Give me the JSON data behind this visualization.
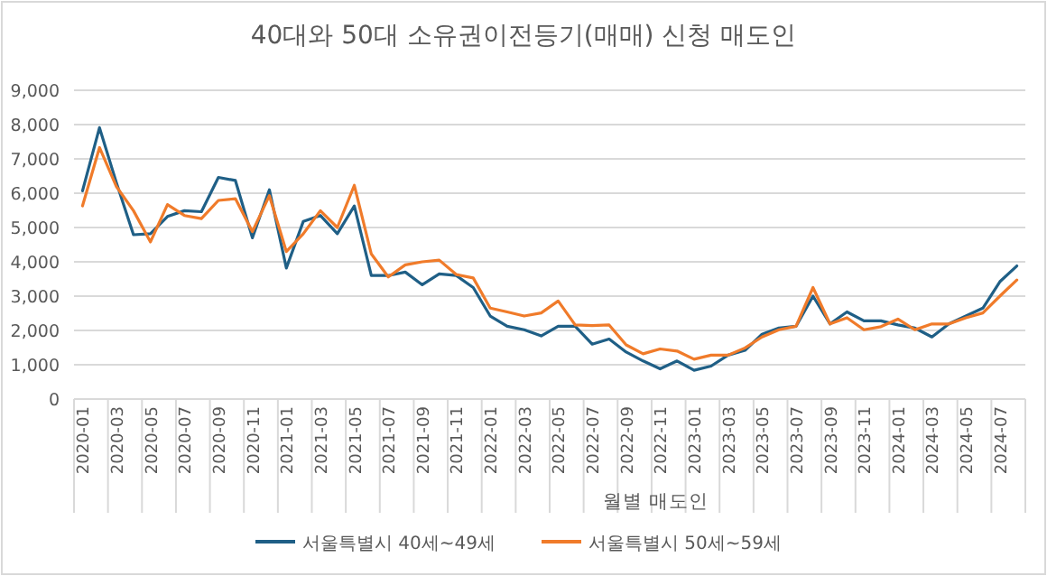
{
  "chart_data": {
    "type": "line",
    "title": "40대와 50대 소유권이전등기(매매) 신청 매도인",
    "xlabel": "월별 매도인",
    "categories": [
      "2020-01",
      null,
      "2020-03",
      null,
      "2020-05",
      null,
      "2020-07",
      null,
      "2020-09",
      null,
      "2020-11",
      null,
      "2021-01",
      null,
      "2021-03",
      null,
      "2021-05",
      null,
      "2021-07",
      null,
      "2021-09",
      null,
      "2021-11",
      null,
      "2022-01",
      null,
      "2022-03",
      null,
      "2022-05",
      null,
      "2022-07",
      null,
      "2022-09",
      null,
      "2022-11",
      null,
      "2023-01",
      null,
      "2023-03",
      null,
      "2023-05",
      null,
      "2023-07",
      null,
      "2023-09",
      null,
      "2023-11",
      null,
      "2024-01",
      null,
      "2024-03",
      null,
      "2024-05",
      null,
      "2024-07",
      null
    ],
    "series": [
      {
        "name": "서울특별시 40세~49세",
        "color": "#1f5f86",
        "values": [
          6070,
          7910,
          6300,
          4790,
          4820,
          5320,
          5490,
          5460,
          6460,
          6370,
          4700,
          6100,
          3820,
          5180,
          5350,
          4820,
          5630,
          3600,
          3600,
          3700,
          3330,
          3650,
          3600,
          3250,
          2420,
          2120,
          2020,
          1840,
          2120,
          2120,
          1600,
          1750,
          1370,
          1110,
          880,
          1110,
          840,
          960,
          1280,
          1420,
          1890,
          2070,
          2120,
          3000,
          2190,
          2540,
          2280,
          2280,
          2160,
          2070,
          1810,
          2190,
          2420,
          2650,
          3420,
          3880
        ]
      },
      {
        "name": "서울특별시 50세~59세",
        "color": "#f07b2a",
        "values": [
          5630,
          7330,
          6190,
          5490,
          4580,
          5670,
          5350,
          5260,
          5790,
          5840,
          4880,
          5930,
          4300,
          4820,
          5490,
          5000,
          6230,
          4230,
          3560,
          3910,
          4000,
          4050,
          3630,
          3530,
          2650,
          2540,
          2420,
          2510,
          2860,
          2160,
          2140,
          2160,
          1580,
          1320,
          1460,
          1400,
          1160,
          1280,
          1280,
          1490,
          1810,
          2020,
          2120,
          3250,
          2190,
          2370,
          2020,
          2110,
          2330,
          2020,
          2190,
          2190,
          2370,
          2510,
          3000,
          3470
        ]
      }
    ],
    "ylim": [
      0,
      9000
    ],
    "yticks": [
      0,
      {
        "value": 1000,
        "label": "1,000"
      },
      {
        "value": 2000,
        "label": "2,000"
      },
      {
        "value": 3000,
        "label": "3,000"
      },
      {
        "value": 4000,
        "label": "4,000"
      },
      {
        "value": 5000,
        "label": "5,000"
      },
      {
        "value": 6000,
        "label": "6,000"
      },
      {
        "value": 7000,
        "label": "7,000"
      },
      {
        "value": 8000,
        "label": "8,000"
      },
      {
        "value": 9000,
        "label": "9,000"
      }
    ],
    "grid": "y",
    "legend": "bottom",
    "marker": "none",
    "line_style": "solid"
  }
}
